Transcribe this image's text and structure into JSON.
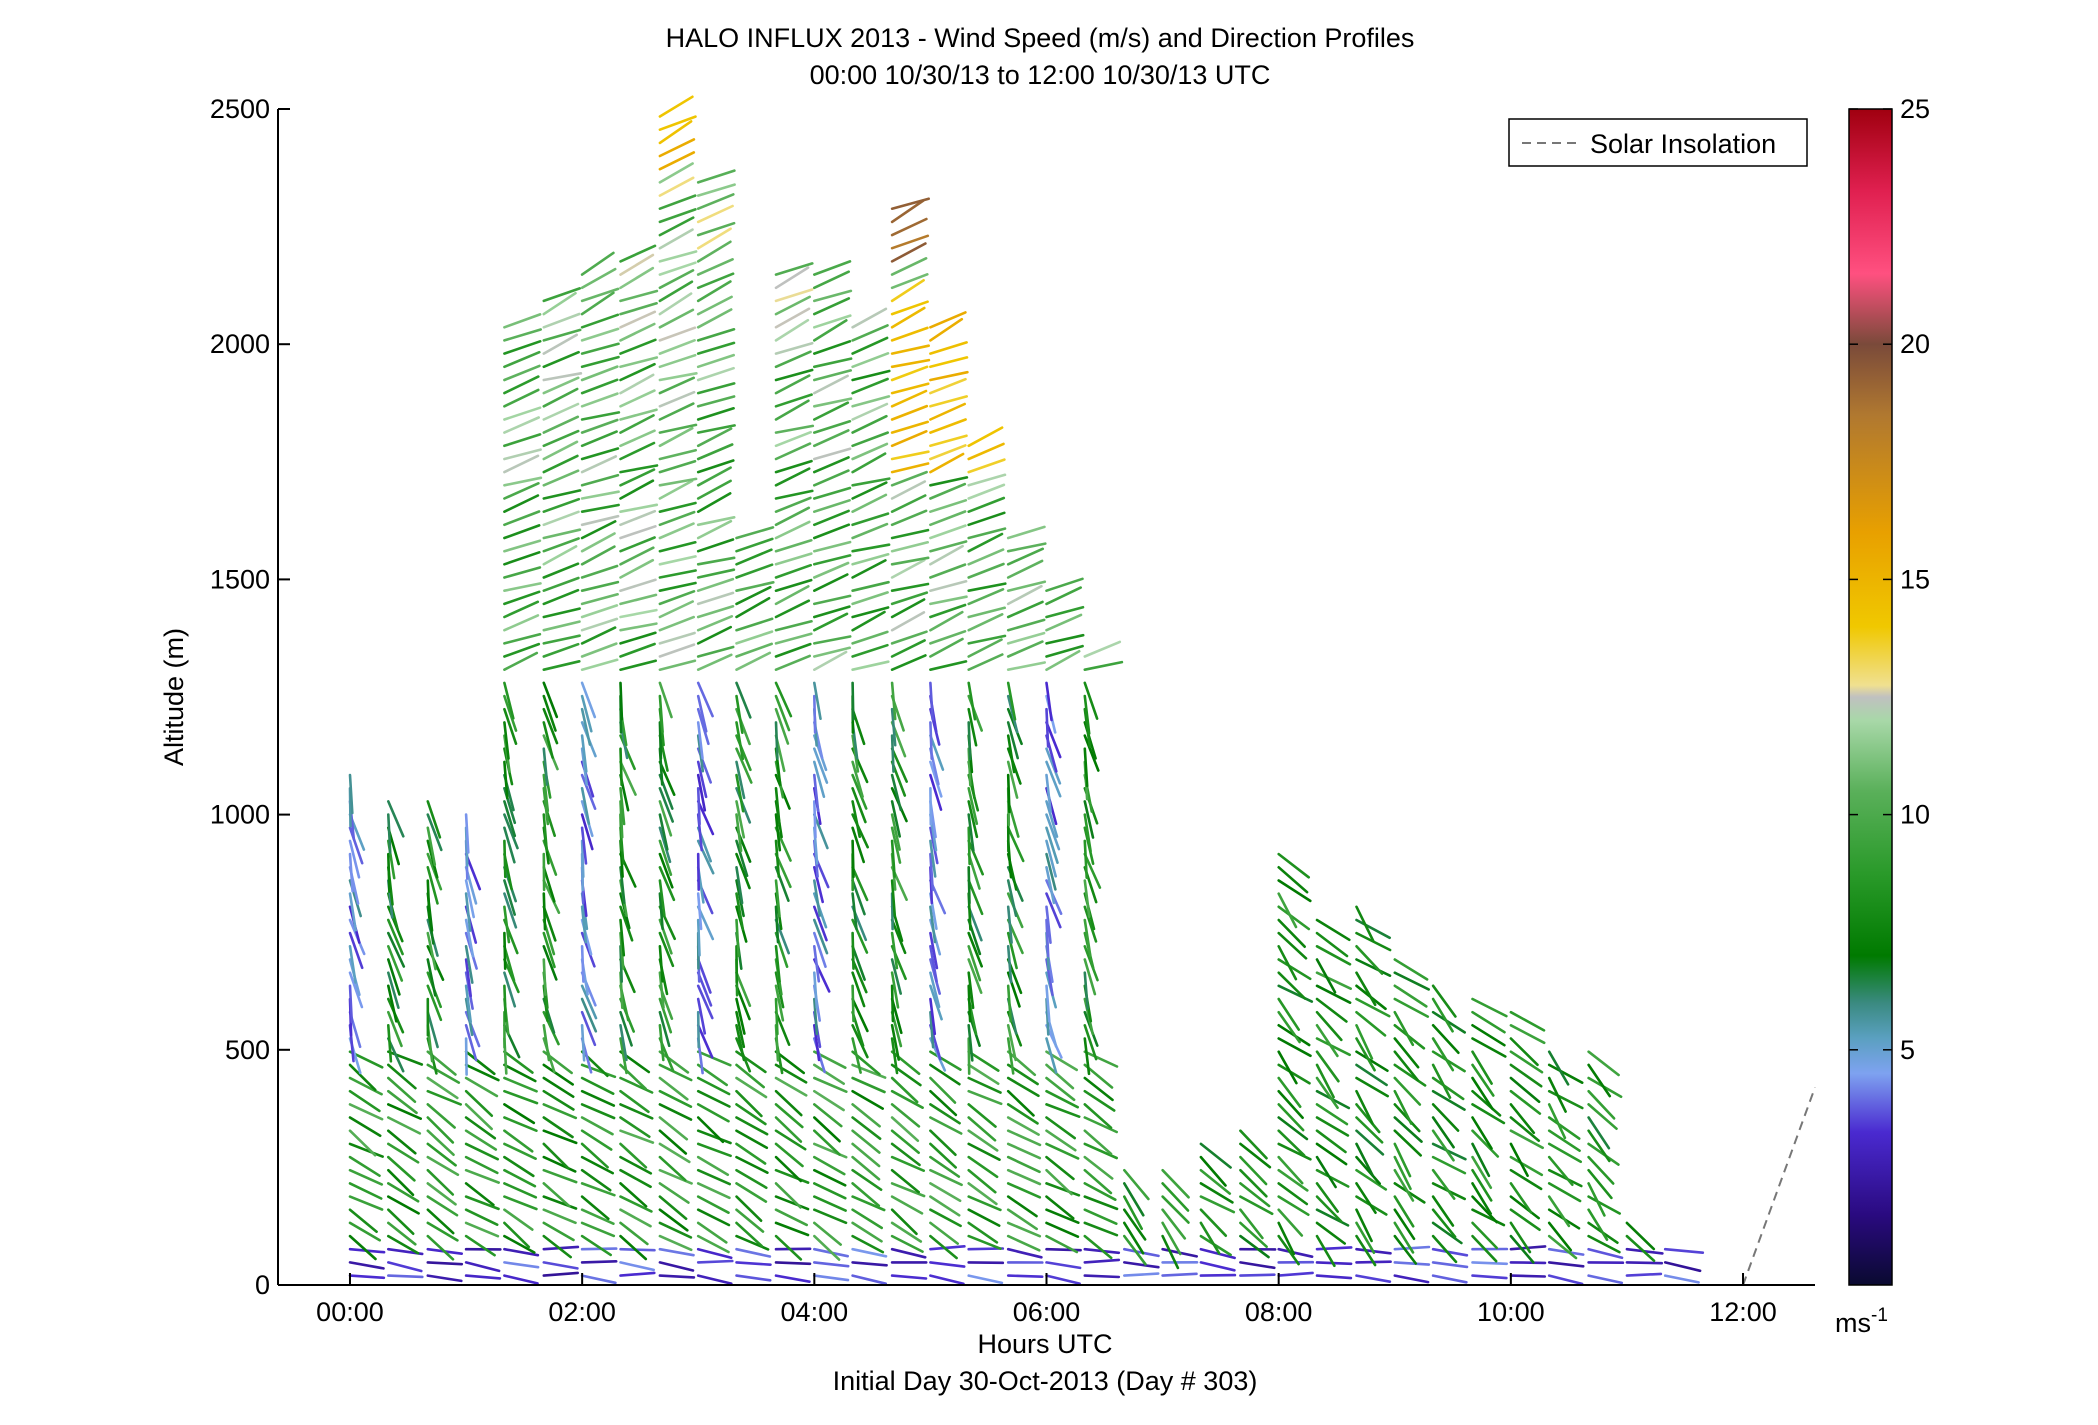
{
  "chart_data": {
    "type": "wind barb profile",
    "title": "HALO INFLUX 2013 - Wind Speed (m/s) and Direction Profiles",
    "subtitle": "00:00 10/30/13 to 12:00 10/30/13  UTC",
    "xlabel": "Hours UTC",
    "xlabel2": "Initial Day 30-Oct-2013 (Day # 303)",
    "ylabel": "Altitude (m)",
    "x_ticks": [
      "00:00",
      "02:00",
      "04:00",
      "06:00",
      "08:00",
      "10:00",
      "12:00"
    ],
    "y_ticks": [
      "0",
      "500",
      "1000",
      "1500",
      "2000",
      "2500"
    ],
    "xlim_hours": [
      -0.62,
      12.62
    ],
    "ylim": [
      0,
      2500
    ],
    "legend": {
      "label": "Solar Insolation",
      "style": "dashed",
      "placement": "top-right"
    },
    "colorbar": {
      "ticks": [
        "5",
        "10",
        "15",
        "20",
        "25"
      ],
      "unit_base": "ms",
      "unit_exp": "-1",
      "range": [
        0,
        25
      ]
    },
    "solar_insolation": {
      "x": [
        12.0,
        12.62
      ],
      "y": [
        0,
        420
      ]
    },
    "profiles_hours": [
      0,
      0.33,
      0.67,
      1.0,
      1.33,
      1.67,
      2.0,
      2.33,
      2.67,
      3.0,
      3.33,
      3.67,
      4.0,
      4.33,
      4.67,
      5.0,
      5.33,
      5.67,
      6.0,
      6.33,
      6.67,
      7.0,
      7.33,
      7.67,
      8.0,
      8.33,
      8.67,
      9.0,
      9.33,
      9.67,
      10.0,
      10.33,
      10.67,
      11.0,
      11.33
    ],
    "profile_top_m": [
      1100,
      1050,
      1050,
      1020,
      2050,
      2100,
      2150,
      2200,
      2500,
      2350,
      1600,
      2150,
      2150,
      2050,
      2300,
      2050,
      1800,
      1600,
      1500,
      1350,
      270,
      270,
      300,
      330,
      930,
      800,
      830,
      700,
      650,
      620,
      600,
      520,
      500,
      150,
      80
    ],
    "profile_bottom_m": [
      20,
      20,
      20,
      20,
      20,
      20,
      20,
      20,
      20,
      20,
      20,
      20,
      20,
      20,
      20,
      20,
      20,
      20,
      20,
      20,
      20,
      20,
      20,
      20,
      20,
      20,
      20,
      20,
      20,
      20,
      20,
      20,
      20,
      20,
      20
    ]
  }
}
